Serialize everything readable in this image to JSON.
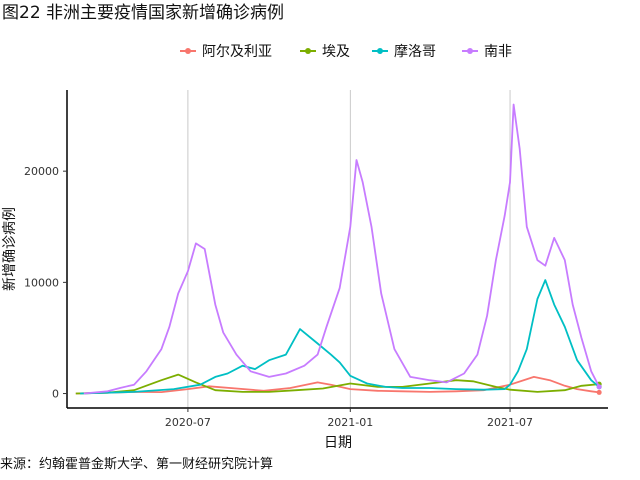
{
  "title": "图22 非洲主要疫情国家新增确诊病例",
  "source": "来源：约翰霍普金斯大学、第一财经研究院计算",
  "chart_data": {
    "type": "line",
    "xlabel": "日期",
    "ylabel": "新增确诊病例",
    "x_ticks": [
      "2020-07",
      "2021-01",
      "2021-07"
    ],
    "y_ticks": [
      0,
      10000,
      20000
    ],
    "xlim": [
      "2020-02-15",
      "2021-10-20"
    ],
    "ylim": [
      -1300,
      27300
    ],
    "grid": "vertical lines at x tick dates",
    "legend_position": "top",
    "series": [
      {
        "name": "阿尔及利亚",
        "color": "#F8766D",
        "x": [
          "2020-02-25",
          "2020-04-01",
          "2020-05-01",
          "2020-06-01",
          "2020-07-01",
          "2020-07-25",
          "2020-08-25",
          "2020-09-25",
          "2020-10-25",
          "2020-11-25",
          "2020-12-10",
          "2021-01-01",
          "2021-02-01",
          "2021-03-01",
          "2021-04-01",
          "2021-05-01",
          "2021-06-01",
          "2021-07-01",
          "2021-07-28",
          "2021-08-15",
          "2021-09-01",
          "2021-09-15",
          "2021-10-01",
          "2021-10-10"
        ],
        "y": [
          0,
          80,
          150,
          130,
          400,
          650,
          450,
          250,
          500,
          1000,
          800,
          400,
          250,
          200,
          150,
          200,
          300,
          800,
          1500,
          1200,
          700,
          400,
          200,
          100
        ]
      },
      {
        "name": "埃及",
        "color": "#7CAE00",
        "x": [
          "2020-02-25",
          "2020-04-01",
          "2020-05-01",
          "2020-06-01",
          "2020-06-20",
          "2020-07-10",
          "2020-08-01",
          "2020-09-01",
          "2020-10-01",
          "2020-11-01",
          "2020-12-01",
          "2021-01-01",
          "2021-02-01",
          "2021-03-01",
          "2021-04-01",
          "2021-05-01",
          "2021-05-20",
          "2021-06-15",
          "2021-07-01",
          "2021-08-01",
          "2021-09-01",
          "2021-09-20",
          "2021-10-10"
        ],
        "y": [
          0,
          80,
          300,
          1200,
          1700,
          1000,
          300,
          150,
          150,
          300,
          450,
          900,
          600,
          600,
          900,
          1200,
          1100,
          600,
          350,
          150,
          300,
          700,
          850
        ]
      },
      {
        "name": "摩洛哥",
        "color": "#00BFC4",
        "x": [
          "2020-03-01",
          "2020-05-01",
          "2020-06-15",
          "2020-07-15",
          "2020-08-01",
          "2020-08-15",
          "2020-09-01",
          "2020-09-15",
          "2020-10-01",
          "2020-10-20",
          "2020-11-05",
          "2020-11-25",
          "2020-12-10",
          "2020-12-20",
          "2021-01-01",
          "2021-01-20",
          "2021-02-10",
          "2021-03-01",
          "2021-04-01",
          "2021-05-01",
          "2021-06-01",
          "2021-06-25",
          "2021-07-01",
          "2021-07-10",
          "2021-07-20",
          "2021-08-01",
          "2021-08-10",
          "2021-08-20",
          "2021-09-01",
          "2021-09-15",
          "2021-10-01",
          "2021-10-10"
        ],
        "y": [
          0,
          150,
          400,
          800,
          1500,
          1800,
          2500,
          2200,
          3000,
          3500,
          5800,
          4500,
          3500,
          2800,
          1600,
          900,
          600,
          500,
          500,
          400,
          350,
          400,
          800,
          2000,
          4000,
          8500,
          10200,
          8000,
          6000,
          3000,
          1200,
          600
        ]
      },
      {
        "name": "南非",
        "color": "#C77CFF",
        "x": [
          "2020-03-05",
          "2020-04-01",
          "2020-04-15",
          "2020-05-01",
          "2020-05-15",
          "2020-06-01",
          "2020-06-10",
          "2020-06-20",
          "2020-07-01",
          "2020-07-10",
          "2020-07-20",
          "2020-08-01",
          "2020-08-10",
          "2020-08-25",
          "2020-09-10",
          "2020-10-01",
          "2020-10-20",
          "2020-11-10",
          "2020-11-25",
          "2020-12-05",
          "2020-12-20",
          "2021-01-01",
          "2021-01-08",
          "2021-01-15",
          "2021-01-25",
          "2021-02-05",
          "2021-02-20",
          "2021-03-10",
          "2021-04-01",
          "2021-04-20",
          "2021-05-10",
          "2021-05-25",
          "2021-06-05",
          "2021-06-15",
          "2021-06-25",
          "2021-07-01",
          "2021-07-05",
          "2021-07-12",
          "2021-07-20",
          "2021-08-01",
          "2021-08-10",
          "2021-08-20",
          "2021-09-01",
          "2021-09-10",
          "2021-09-20",
          "2021-10-01",
          "2021-10-10"
        ],
        "y": [
          0,
          200,
          500,
          800,
          2000,
          4000,
          6000,
          9000,
          11000,
          13500,
          13000,
          8000,
          5500,
          3500,
          2000,
          1500,
          1800,
          2500,
          3500,
          6000,
          9500,
          15000,
          21000,
          19000,
          15000,
          9000,
          4000,
          1500,
          1200,
          1000,
          1800,
          3500,
          7000,
          12000,
          16000,
          19000,
          26000,
          22000,
          15000,
          12000,
          11500,
          14000,
          12000,
          8000,
          5000,
          2000,
          600
        ]
      }
    ]
  }
}
